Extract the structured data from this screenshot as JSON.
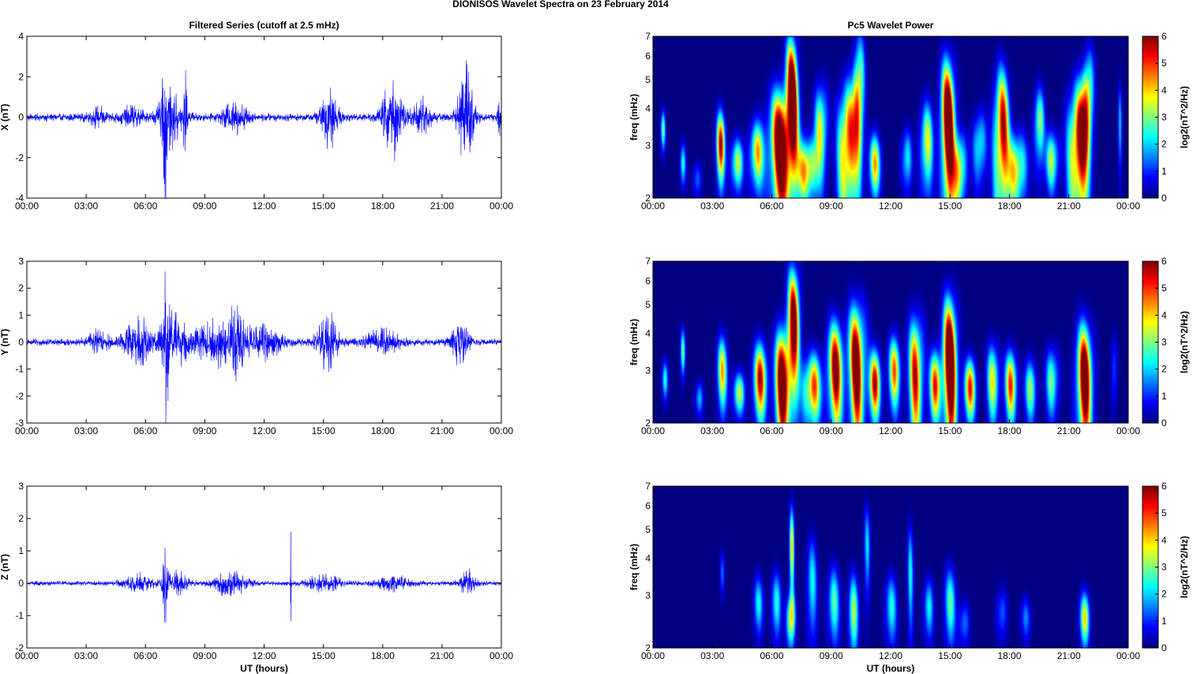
{
  "figure": {
    "suptitle": "DIONISOS Wavelet Spectra on 23 February  2014"
  },
  "chart_data": [
    {
      "type": "line",
      "title": "Filtered Series (cutoff at 2.5 mHz)",
      "xlabel": "",
      "ylabel": "X (nT)",
      "xticks": [
        "00:00",
        "03:00",
        "06:00",
        "09:00",
        "12:00",
        "15:00",
        "18:00",
        "21:00",
        "00:00"
      ],
      "yticks": [
        "4",
        "2",
        "0",
        "-2",
        "-4"
      ],
      "ylim": [
        -4,
        4
      ],
      "xlim_hours": [
        0,
        24
      ],
      "color": "#0000ff",
      "noise_amp": 0.22,
      "bursts": [
        {
          "t": 3.6,
          "amp": 0.45,
          "w": 0.5
        },
        {
          "t": 5.3,
          "amp": 0.5,
          "w": 0.6
        },
        {
          "t": 7.0,
          "amp": 3.4,
          "w": 0.15
        },
        {
          "t": 7.3,
          "amp": 1.6,
          "w": 0.6
        },
        {
          "t": 8.0,
          "amp": 2.0,
          "w": 0.1
        },
        {
          "t": 10.5,
          "amp": 0.9,
          "w": 0.6
        },
        {
          "t": 15.3,
          "amp": 1.7,
          "w": 0.4
        },
        {
          "t": 18.5,
          "amp": 2.1,
          "w": 0.5
        },
        {
          "t": 20.0,
          "amp": 0.9,
          "w": 0.5
        },
        {
          "t": 22.2,
          "amp": 2.8,
          "w": 0.4
        },
        {
          "t": 23.9,
          "amp": 1.0,
          "w": 0.1
        }
      ]
    },
    {
      "type": "line",
      "title": "",
      "xlabel": "",
      "ylabel": "Y (nT)",
      "xticks": [
        "00:00",
        "03:00",
        "06:00",
        "09:00",
        "12:00",
        "15:00",
        "18:00",
        "21:00",
        "00:00"
      ],
      "yticks": [
        "3",
        "2",
        "1",
        "0",
        "-1",
        "-2",
        "-3"
      ],
      "ylim": [
        -3,
        3
      ],
      "xlim_hours": [
        0,
        24
      ],
      "color": "#0000ff",
      "noise_amp": 0.15,
      "bursts": [
        {
          "t": 3.6,
          "amp": 0.45,
          "w": 0.5
        },
        {
          "t": 5.7,
          "amp": 0.9,
          "w": 0.8
        },
        {
          "t": 7.05,
          "amp": 2.6,
          "w": 0.15
        },
        {
          "t": 7.5,
          "amp": 1.1,
          "w": 0.7
        },
        {
          "t": 9.5,
          "amp": 0.9,
          "w": 1.0
        },
        {
          "t": 10.6,
          "amp": 1.3,
          "w": 0.5
        },
        {
          "t": 12.0,
          "amp": 0.7,
          "w": 0.8
        },
        {
          "t": 15.2,
          "amp": 1.2,
          "w": 0.5
        },
        {
          "t": 18.0,
          "amp": 0.5,
          "w": 0.8
        },
        {
          "t": 21.9,
          "amp": 0.9,
          "w": 0.4
        }
      ]
    },
    {
      "type": "line",
      "title": "",
      "xlabel": "UT (hours)",
      "ylabel": "Z (nT)",
      "xticks": [
        "00:00",
        "03:00",
        "06:00",
        "09:00",
        "12:00",
        "15:00",
        "18:00",
        "21:00",
        "00:00"
      ],
      "yticks": [
        "3",
        "2",
        "1",
        "0",
        "-1",
        "-2"
      ],
      "ylim": [
        -2,
        3
      ],
      "xlim_hours": [
        0,
        24
      ],
      "color": "#0000ff",
      "noise_amp": 0.08,
      "bursts": [
        {
          "t": 5.6,
          "amp": 0.3,
          "w": 0.7
        },
        {
          "t": 7.0,
          "amp": 1.2,
          "w": 0.15
        },
        {
          "t": 7.6,
          "amp": 0.35,
          "w": 0.6
        },
        {
          "t": 10.3,
          "amp": 0.45,
          "w": 0.8
        },
        {
          "t": 13.35,
          "amp": 2.2,
          "w": 0.02
        },
        {
          "t": 15.0,
          "amp": 0.3,
          "w": 0.8
        },
        {
          "t": 18.5,
          "amp": 0.25,
          "w": 0.8
        },
        {
          "t": 22.3,
          "amp": 0.4,
          "w": 0.4
        }
      ]
    },
    {
      "type": "heatmap",
      "title": "Pc5 Wavelet Power",
      "xlabel": "",
      "ylabel": "freq (mHz)",
      "xticks": [
        "00:00",
        "03:00",
        "06:00",
        "09:00",
        "12:00",
        "15:00",
        "18:00",
        "21:00",
        "00:00"
      ],
      "yticks": [
        "7",
        "6",
        "5",
        "4",
        "3",
        "2"
      ],
      "ylim_mhz": [
        2,
        7
      ],
      "yscale": "log",
      "colorbar_label": "log2(nT^2/Hz)",
      "colorbar_ticks": [
        "6",
        "5",
        "4",
        "3",
        "2",
        "1",
        "0"
      ],
      "clim": [
        0,
        6
      ],
      "colormap": "jet",
      "blobs": [
        {
          "t": 0.5,
          "f": 3.4,
          "p": 3.0,
          "wt": 0.12,
          "wf": 0.5
        },
        {
          "t": 1.5,
          "f": 2.6,
          "p": 2.5,
          "wt": 0.15,
          "wf": 0.4
        },
        {
          "t": 2.2,
          "f": 2.3,
          "p": 2.2,
          "wt": 0.2,
          "wf": 0.3
        },
        {
          "t": 3.4,
          "f": 3.0,
          "p": 6.0,
          "wt": 0.22,
          "wf": 0.8
        },
        {
          "t": 4.2,
          "f": 2.6,
          "p": 4.5,
          "wt": 0.3,
          "wf": 0.5
        },
        {
          "t": 5.2,
          "f": 2.8,
          "p": 5.0,
          "wt": 0.35,
          "wf": 0.7
        },
        {
          "t": 6.5,
          "f": 3.0,
          "p": 9.0,
          "wt": 0.6,
          "wf": 1.4
        },
        {
          "t": 7.0,
          "f": 4.5,
          "p": 8.0,
          "wt": 0.3,
          "wf": 2.2
        },
        {
          "t": 7.8,
          "f": 2.5,
          "p": 7.0,
          "wt": 0.4,
          "wf": 0.6
        },
        {
          "t": 8.5,
          "f": 3.5,
          "p": 5.0,
          "wt": 0.3,
          "wf": 1.2
        },
        {
          "t": 9.8,
          "f": 3.0,
          "p": 8.0,
          "wt": 0.4,
          "wf": 1.5
        },
        {
          "t": 10.4,
          "f": 4.5,
          "p": 7.0,
          "wt": 0.25,
          "wf": 2.0
        },
        {
          "t": 11.2,
          "f": 2.6,
          "p": 4.5,
          "wt": 0.3,
          "wf": 0.6
        },
        {
          "t": 12.8,
          "f": 2.7,
          "p": 3.5,
          "wt": 0.25,
          "wf": 0.6
        },
        {
          "t": 13.8,
          "f": 3.0,
          "p": 5.0,
          "wt": 0.3,
          "wf": 1.0
        },
        {
          "t": 14.9,
          "f": 3.5,
          "p": 9.0,
          "wt": 0.35,
          "wf": 2.0
        },
        {
          "t": 15.5,
          "f": 2.5,
          "p": 6.0,
          "wt": 0.3,
          "wf": 0.7
        },
        {
          "t": 16.5,
          "f": 3.0,
          "p": 4.0,
          "wt": 0.3,
          "wf": 0.8
        },
        {
          "t": 17.6,
          "f": 3.2,
          "p": 8.0,
          "wt": 0.35,
          "wf": 1.8
        },
        {
          "t": 18.4,
          "f": 2.5,
          "p": 6.0,
          "wt": 0.4,
          "wf": 0.7
        },
        {
          "t": 19.5,
          "f": 3.5,
          "p": 4.5,
          "wt": 0.25,
          "wf": 1.0
        },
        {
          "t": 20.2,
          "f": 2.7,
          "p": 4.5,
          "wt": 0.3,
          "wf": 0.6
        },
        {
          "t": 21.5,
          "f": 3.0,
          "p": 9.0,
          "wt": 0.45,
          "wf": 1.5
        },
        {
          "t": 22.0,
          "f": 4.5,
          "p": 6.0,
          "wt": 0.25,
          "wf": 1.5
        },
        {
          "t": 23.6,
          "f": 3.5,
          "p": 2.0,
          "wt": 0.1,
          "wf": 1.2
        }
      ]
    },
    {
      "type": "heatmap",
      "title": "",
      "xlabel": "",
      "ylabel": "freq (mHz)",
      "xticks": [
        "00:00",
        "03:00",
        "06:00",
        "09:00",
        "12:00",
        "15:00",
        "18:00",
        "21:00",
        "00:00"
      ],
      "yticks": [
        "7",
        "6",
        "5",
        "4",
        "3",
        "2"
      ],
      "ylim_mhz": [
        2,
        7
      ],
      "yscale": "log",
      "colorbar_label": "log2(nT^2/Hz)",
      "colorbar_ticks": [
        "6",
        "5",
        "4",
        "3",
        "2",
        "1",
        "0"
      ],
      "clim": [
        0,
        6
      ],
      "colormap": "jet",
      "blobs": [
        {
          "t": 0.6,
          "f": 2.8,
          "p": 2.5,
          "wt": 0.15,
          "wf": 0.4
        },
        {
          "t": 1.5,
          "f": 3.5,
          "p": 3.0,
          "wt": 0.12,
          "wf": 0.6
        },
        {
          "t": 2.3,
          "f": 2.4,
          "p": 2.5,
          "wt": 0.2,
          "wf": 0.3
        },
        {
          "t": 3.5,
          "f": 3.0,
          "p": 4.5,
          "wt": 0.25,
          "wf": 0.8
        },
        {
          "t": 4.3,
          "f": 2.5,
          "p": 4.0,
          "wt": 0.3,
          "wf": 0.4
        },
        {
          "t": 5.4,
          "f": 2.8,
          "p": 6.0,
          "wt": 0.35,
          "wf": 0.8
        },
        {
          "t": 6.6,
          "f": 2.8,
          "p": 9.0,
          "wt": 0.4,
          "wf": 1.2
        },
        {
          "t": 7.1,
          "f": 4.5,
          "p": 7.0,
          "wt": 0.3,
          "wf": 2.0
        },
        {
          "t": 8.0,
          "f": 2.6,
          "p": 7.0,
          "wt": 0.4,
          "wf": 0.7
        },
        {
          "t": 9.2,
          "f": 3.0,
          "p": 7.0,
          "wt": 0.4,
          "wf": 1.2
        },
        {
          "t": 10.3,
          "f": 3.2,
          "p": 8.0,
          "wt": 0.4,
          "wf": 1.6
        },
        {
          "t": 11.2,
          "f": 2.7,
          "p": 6.0,
          "wt": 0.3,
          "wf": 0.7
        },
        {
          "t": 12.2,
          "f": 3.0,
          "p": 5.0,
          "wt": 0.3,
          "wf": 0.8
        },
        {
          "t": 13.3,
          "f": 3.0,
          "p": 6.5,
          "wt": 0.35,
          "wf": 1.4
        },
        {
          "t": 14.3,
          "f": 2.7,
          "p": 6.0,
          "wt": 0.3,
          "wf": 0.7
        },
        {
          "t": 15.0,
          "f": 3.2,
          "p": 9.0,
          "wt": 0.35,
          "wf": 1.8
        },
        {
          "t": 16.0,
          "f": 2.6,
          "p": 5.5,
          "wt": 0.3,
          "wf": 0.6
        },
        {
          "t": 17.2,
          "f": 2.8,
          "p": 4.5,
          "wt": 0.3,
          "wf": 0.8
        },
        {
          "t": 18.1,
          "f": 2.7,
          "p": 5.5,
          "wt": 0.3,
          "wf": 0.7
        },
        {
          "t": 19.1,
          "f": 2.6,
          "p": 3.5,
          "wt": 0.3,
          "wf": 0.6
        },
        {
          "t": 20.2,
          "f": 2.8,
          "p": 4.0,
          "wt": 0.3,
          "wf": 0.7
        },
        {
          "t": 21.8,
          "f": 2.8,
          "p": 8.0,
          "wt": 0.4,
          "wf": 1.3
        },
        {
          "t": 23.3,
          "f": 3.0,
          "p": 2.0,
          "wt": 0.15,
          "wf": 0.8
        }
      ]
    },
    {
      "type": "heatmap",
      "title": "",
      "xlabel": "UT (hours)",
      "ylabel": "freq (mHz)",
      "xticks": [
        "00:00",
        "03:00",
        "06:00",
        "09:00",
        "12:00",
        "15:00",
        "18:00",
        "21:00",
        "00:00"
      ],
      "yticks": [
        "7",
        "6",
        "5",
        "4",
        "3",
        "2"
      ],
      "ylim_mhz": [
        2,
        7
      ],
      "yscale": "log",
      "colorbar_label": "log2(nT^2/Hz)",
      "colorbar_ticks": [
        "6",
        "5",
        "4",
        "3",
        "2",
        "1",
        "0"
      ],
      "clim": [
        0,
        6
      ],
      "colormap": "jet",
      "blobs": [
        {
          "t": 3.5,
          "f": 3.6,
          "p": 1.5,
          "wt": 0.12,
          "wf": 0.6
        },
        {
          "t": 5.3,
          "f": 2.8,
          "p": 2.5,
          "wt": 0.25,
          "wf": 0.6
        },
        {
          "t": 6.2,
          "f": 2.8,
          "p": 2.8,
          "wt": 0.25,
          "wf": 0.7
        },
        {
          "t": 6.95,
          "f": 2.5,
          "p": 6.5,
          "wt": 0.2,
          "wf": 0.5
        },
        {
          "t": 7.0,
          "f": 4.2,
          "p": 4.5,
          "wt": 0.12,
          "wf": 1.5
        },
        {
          "t": 8.0,
          "f": 3.2,
          "p": 3.0,
          "wt": 0.25,
          "wf": 1.2
        },
        {
          "t": 9.1,
          "f": 2.8,
          "p": 3.2,
          "wt": 0.3,
          "wf": 0.8
        },
        {
          "t": 10.1,
          "f": 2.6,
          "p": 3.8,
          "wt": 0.25,
          "wf": 0.8
        },
        {
          "t": 10.8,
          "f": 4.2,
          "p": 2.6,
          "wt": 0.15,
          "wf": 1.5
        },
        {
          "t": 12.0,
          "f": 2.7,
          "p": 2.8,
          "wt": 0.3,
          "wf": 0.7
        },
        {
          "t": 13.0,
          "f": 3.5,
          "p": 2.4,
          "wt": 0.15,
          "wf": 1.5
        },
        {
          "t": 13.9,
          "f": 2.7,
          "p": 2.8,
          "wt": 0.25,
          "wf": 0.6
        },
        {
          "t": 15.0,
          "f": 2.8,
          "p": 3.0,
          "wt": 0.3,
          "wf": 0.8
        },
        {
          "t": 15.7,
          "f": 2.4,
          "p": 2.4,
          "wt": 0.25,
          "wf": 0.4
        },
        {
          "t": 17.6,
          "f": 2.6,
          "p": 2.2,
          "wt": 0.25,
          "wf": 0.5
        },
        {
          "t": 18.8,
          "f": 2.5,
          "p": 1.8,
          "wt": 0.25,
          "wf": 0.4
        },
        {
          "t": 21.8,
          "f": 2.5,
          "p": 4.2,
          "wt": 0.25,
          "wf": 0.5
        }
      ]
    }
  ]
}
